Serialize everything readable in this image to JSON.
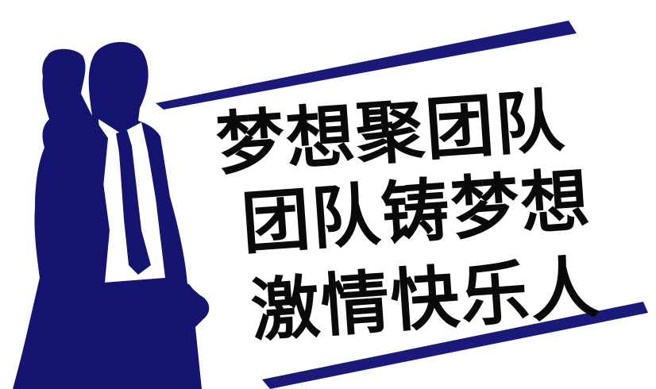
{
  "slogan": {
    "line1": "梦想聚团队",
    "line2": "团队铸梦想",
    "line3": "激情快乐人"
  },
  "colors": {
    "silhouette": "#141570",
    "stripe": "#1a1a7a",
    "text": "#0b0a08",
    "background": "#ffffff"
  }
}
